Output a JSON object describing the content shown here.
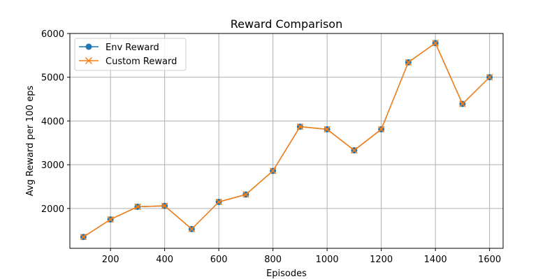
{
  "chart_data": {
    "type": "line",
    "title": "Reward Comparison",
    "xlabel": "Episodes",
    "ylabel": "Avg Reward per 100 eps",
    "x": [
      100,
      200,
      300,
      400,
      500,
      600,
      700,
      800,
      900,
      1000,
      1100,
      1200,
      1300,
      1400,
      1500,
      1600
    ],
    "xlim": [
      50,
      1650
    ],
    "ylim": [
      1090,
      6000
    ],
    "xticks": [
      200,
      400,
      600,
      800,
      1000,
      1200,
      1400,
      1600
    ],
    "yticks": [
      2000,
      3000,
      4000,
      5000,
      6000
    ],
    "grid": true,
    "legend_position": "top-left",
    "series": [
      {
        "name": "Env Reward",
        "color": "#1f77b4",
        "marker": "circle",
        "values": [
          1350,
          1750,
          2040,
          2060,
          1530,
          2150,
          2320,
          2860,
          3870,
          3810,
          3330,
          3810,
          5340,
          5780,
          4390,
          5000
        ]
      },
      {
        "name": "Custom Reward",
        "color": "#ff7f0e",
        "marker": "x",
        "values": [
          1350,
          1750,
          2040,
          2060,
          1530,
          2150,
          2320,
          2860,
          3870,
          3810,
          3330,
          3810,
          5340,
          5780,
          4390,
          5000
        ]
      }
    ]
  }
}
